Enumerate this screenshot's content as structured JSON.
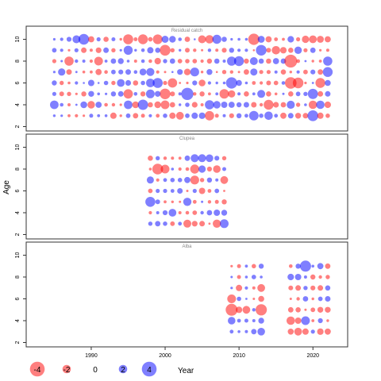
{
  "ylabel": "Age",
  "xlabel": "Year",
  "colors": {
    "positive": "#0000ff",
    "negative": "#ff0000",
    "frame": "#333333",
    "text": "#000000",
    "panel_title": "#888888"
  },
  "legend": {
    "values": [
      -4,
      -2,
      0,
      2,
      4
    ],
    "labels": [
      "-4",
      "-2",
      "0",
      "2",
      "4"
    ]
  },
  "x_axis": {
    "ticks": [
      1990,
      2000,
      2010,
      2020
    ],
    "labels": [
      "1990",
      "2000",
      "2010",
      "2020"
    ],
    "range": [
      1981.2,
      2024.7
    ]
  },
  "chart_data": [
    {
      "type": "scatter",
      "subtype": "bubble",
      "title": "Residual catch",
      "xlabel": "Year",
      "ylabel": "Age",
      "y_range": [
        1.6,
        11.2
      ],
      "y_ticks": [
        2,
        4,
        6,
        8,
        10
      ],
      "years": [
        1985,
        2022
      ],
      "ages": [
        3,
        10
      ],
      "fill": "full grid, every year and age",
      "notes": "values range roughly -4 to 4; negative = red, positive = blue"
    },
    {
      "type": "scatter",
      "subtype": "bubble",
      "title": "Clupea",
      "xlabel": "Year",
      "ylabel": "Age",
      "y_range": [
        1.6,
        11.2
      ],
      "y_ticks": [
        2,
        4,
        6,
        8,
        10
      ],
      "years": [
        1998,
        2008
      ],
      "ages": [
        3,
        9
      ],
      "fill": "full grid"
    },
    {
      "type": "scatter",
      "subtype": "bubble",
      "title": "Alba",
      "xlabel": "Year",
      "ylabel": "Age",
      "y_range": [
        1.6,
        11.2
      ],
      "y_ticks": [
        2,
        4,
        6,
        8,
        10
      ],
      "years": [
        2009,
        2022
      ],
      "gap_years": [
        2014,
        2015,
        2016
      ],
      "ages": [
        3,
        9
      ],
      "fill": "two blocks: 2009-2013 and 2017-2022"
    }
  ]
}
